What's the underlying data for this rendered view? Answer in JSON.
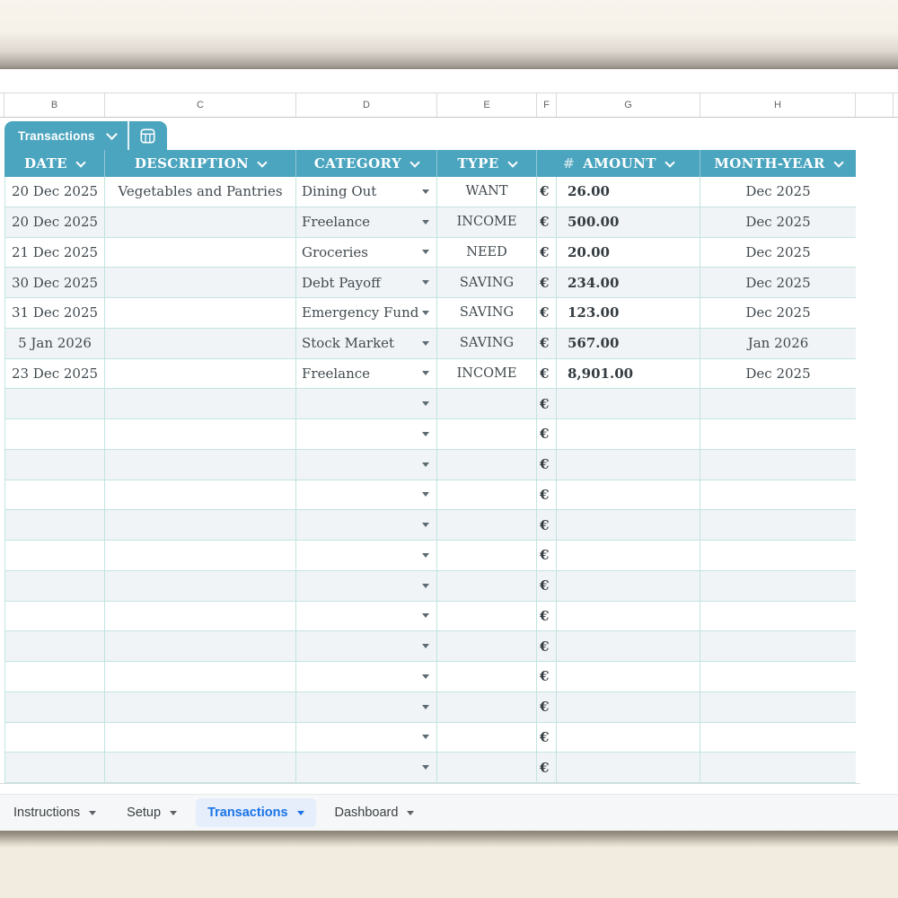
{
  "colors": {
    "teal_header": "#4ca5bf",
    "grid_line": "#c2e4e0",
    "alt_row_bg": "#f1f4f6",
    "body_text": "#414a4f",
    "amount_text": "#343c41",
    "active_tab_text": "#1a73e8",
    "active_tab_bg": "#e6eefb",
    "top_cream": "#f8f3ec",
    "bottom_cream": "#f1ebe0"
  },
  "column_letters": [
    "B",
    "C",
    "D",
    "E",
    "F",
    "G",
    "H"
  ],
  "sheet_chip": {
    "label": "Transactions",
    "chevron_icon": "chevron-down-icon",
    "table_icon": "table-grid-icon"
  },
  "table": {
    "currency_symbol": "€",
    "columns": [
      {
        "label": "DATE"
      },
      {
        "label": "DESCRIPTION"
      },
      {
        "label": "CATEGORY"
      },
      {
        "label": "TYPE"
      },
      {
        "label": "AMOUNT",
        "prefix": "#"
      },
      {
        "label": "MONTH-YEAR"
      }
    ],
    "rows": [
      {
        "date": "20 Dec 2025",
        "description": "Vegetables and Pantries",
        "category": "Dining Out",
        "type": "WANT",
        "amount": "26.00",
        "month": "Dec 2025"
      },
      {
        "date": "20 Dec 2025",
        "description": "",
        "category": "Freelance",
        "type": "INCOME",
        "amount": "500.00",
        "month": "Dec 2025"
      },
      {
        "date": "21 Dec 2025",
        "description": "",
        "category": "Groceries",
        "type": "NEED",
        "amount": "20.00",
        "month": "Dec 2025"
      },
      {
        "date": "30 Dec 2025",
        "description": "",
        "category": "Debt Payoff",
        "type": "SAVING",
        "amount": "234.00",
        "month": "Dec 2025"
      },
      {
        "date": "31 Dec 2025",
        "description": "",
        "category": "Emergency Fund",
        "type": "SAVING",
        "amount": "123.00",
        "month": "Dec 2025"
      },
      {
        "date": "5 Jan 2026",
        "description": "",
        "category": "Stock Market",
        "type": "SAVING",
        "amount": "567.00",
        "month": "Jan 2026"
      },
      {
        "date": "23 Dec 2025",
        "description": "",
        "category": "Freelance",
        "type": "INCOME",
        "amount": "8,901.00",
        "month": "Dec 2025"
      },
      {
        "date": "",
        "description": "",
        "category": "",
        "type": "",
        "amount": "",
        "month": ""
      },
      {
        "date": "",
        "description": "",
        "category": "",
        "type": "",
        "amount": "",
        "month": ""
      },
      {
        "date": "",
        "description": "",
        "category": "",
        "type": "",
        "amount": "",
        "month": ""
      },
      {
        "date": "",
        "description": "",
        "category": "",
        "type": "",
        "amount": "",
        "month": ""
      },
      {
        "date": "",
        "description": "",
        "category": "",
        "type": "",
        "amount": "",
        "month": ""
      },
      {
        "date": "",
        "description": "",
        "category": "",
        "type": "",
        "amount": "",
        "month": ""
      },
      {
        "date": "",
        "description": "",
        "category": "",
        "type": "",
        "amount": "",
        "month": ""
      },
      {
        "date": "",
        "description": "",
        "category": "",
        "type": "",
        "amount": "",
        "month": ""
      },
      {
        "date": "",
        "description": "",
        "category": "",
        "type": "",
        "amount": "",
        "month": ""
      },
      {
        "date": "",
        "description": "",
        "category": "",
        "type": "",
        "amount": "",
        "month": ""
      },
      {
        "date": "",
        "description": "",
        "category": "",
        "type": "",
        "amount": "",
        "month": ""
      },
      {
        "date": "",
        "description": "",
        "category": "",
        "type": "",
        "amount": "",
        "month": ""
      },
      {
        "date": "",
        "description": "",
        "category": "",
        "type": "",
        "amount": "",
        "month": ""
      }
    ]
  },
  "sheet_tabs": {
    "items": [
      {
        "label": "Instructions",
        "active": false
      },
      {
        "label": "Setup",
        "active": false
      },
      {
        "label": "Transactions",
        "active": true
      },
      {
        "label": "Dashboard",
        "active": false
      }
    ]
  }
}
